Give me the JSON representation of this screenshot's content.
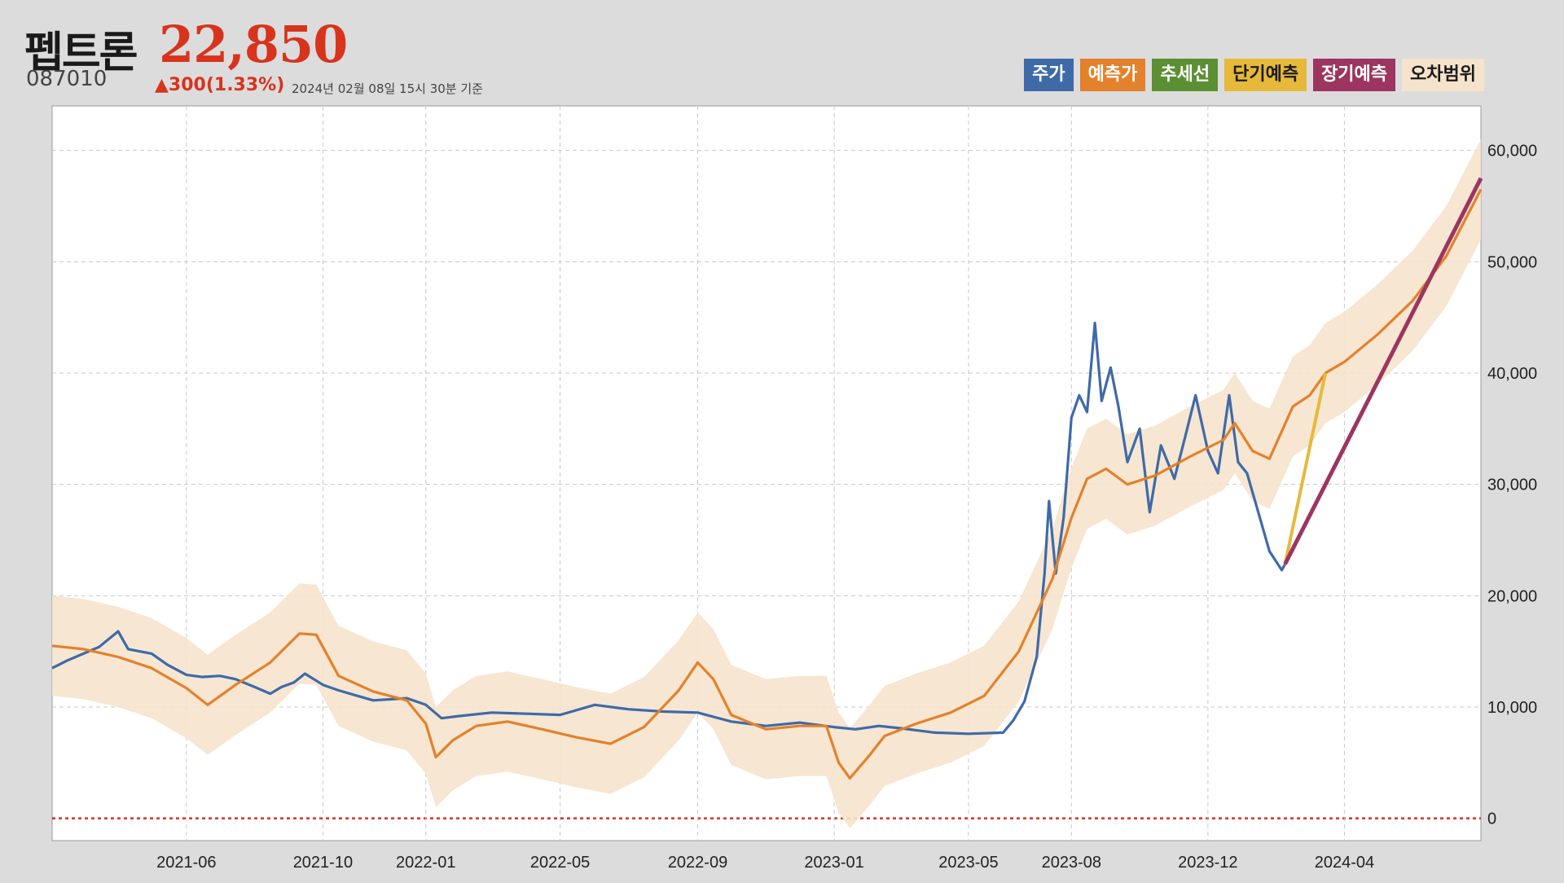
{
  "header": {
    "name": "펩트론",
    "price": "22,850",
    "code": "087010",
    "change": "▲300(1.33%)",
    "timestamp": "2024년 02월 08일 15시 30분 기준"
  },
  "legend": [
    {
      "label": "주가",
      "bg": "#3e6aa8",
      "fg": "#ffffff"
    },
    {
      "label": "예측가",
      "bg": "#e3812c",
      "fg": "#ffffff"
    },
    {
      "label": "추세선",
      "bg": "#5b8f33",
      "fg": "#ffffff"
    },
    {
      "label": "단기예측",
      "bg": "#e6b93a",
      "fg": "#1a1a1a"
    },
    {
      "label": "장기예측",
      "bg": "#9c3560",
      "fg": "#ffffff"
    },
    {
      "label": "오차범위",
      "bg": "#f6e3cc",
      "fg": "#1a1a1a"
    }
  ],
  "chart_data": {
    "type": "line",
    "x_tick_labels": [
      "2021-06",
      "2021-10",
      "2022-01",
      "2022-05",
      "2022-09",
      "2023-01",
      "2023-05",
      "2023-08",
      "2023-12",
      "2024-04"
    ],
    "y_tick_labels": [
      "0",
      "10,000",
      "20,000",
      "30,000",
      "40,000",
      "50,000",
      "60,000"
    ],
    "xlim": [
      "2021-02-01",
      "2024-08-01"
    ],
    "ylim": [
      -2000,
      64000
    ],
    "grid": true,
    "baseline": 0,
    "colors": {
      "price": "#3e6aa8",
      "predicted": "#e3812c",
      "band": "#f6e3cc",
      "short": "#e6b93a",
      "long": "#9c3560",
      "baseline": "#d8331c"
    },
    "series": [
      {
        "name": "주가",
        "key": "price",
        "values": [
          [
            "2021-02-01",
            13500
          ],
          [
            "2021-02-15",
            14200
          ],
          [
            "2021-03-01",
            14800
          ],
          [
            "2021-03-15",
            15400
          ],
          [
            "2021-04-01",
            16800
          ],
          [
            "2021-04-10",
            15200
          ],
          [
            "2021-05-01",
            14800
          ],
          [
            "2021-05-15",
            13800
          ],
          [
            "2021-06-01",
            12900
          ],
          [
            "2021-06-15",
            12700
          ],
          [
            "2021-07-01",
            12800
          ],
          [
            "2021-07-15",
            12500
          ],
          [
            "2021-08-01",
            11800
          ],
          [
            "2021-08-15",
            11200
          ],
          [
            "2021-08-25",
            11800
          ],
          [
            "2021-09-05",
            12200
          ],
          [
            "2021-09-15",
            13000
          ],
          [
            "2021-10-01",
            12000
          ],
          [
            "2021-10-15",
            11500
          ],
          [
            "2021-11-01",
            11000
          ],
          [
            "2021-11-15",
            10600
          ],
          [
            "2021-12-01",
            10700
          ],
          [
            "2021-12-15",
            10800
          ],
          [
            "2022-01-01",
            10200
          ],
          [
            "2022-01-15",
            9000
          ],
          [
            "2022-02-01",
            9200
          ],
          [
            "2022-03-01",
            9500
          ],
          [
            "2022-04-01",
            9400
          ],
          [
            "2022-05-01",
            9300
          ],
          [
            "2022-06-01",
            10200
          ],
          [
            "2022-07-01",
            9800
          ],
          [
            "2022-08-01",
            9600
          ],
          [
            "2022-09-01",
            9500
          ],
          [
            "2022-10-01",
            8700
          ],
          [
            "2022-11-01",
            8300
          ],
          [
            "2022-12-01",
            8600
          ],
          [
            "2023-01-01",
            8200
          ],
          [
            "2023-01-20",
            8000
          ],
          [
            "2023-02-10",
            8300
          ],
          [
            "2023-03-01",
            8100
          ],
          [
            "2023-04-01",
            7700
          ],
          [
            "2023-05-01",
            7600
          ],
          [
            "2023-06-01",
            7700
          ],
          [
            "2023-06-10",
            8800
          ],
          [
            "2023-06-20",
            10500
          ],
          [
            "2023-07-01",
            14500
          ],
          [
            "2023-07-08",
            22000
          ],
          [
            "2023-07-12",
            28500
          ],
          [
            "2023-07-18",
            22000
          ],
          [
            "2023-07-25",
            27000
          ],
          [
            "2023-08-01",
            36000
          ],
          [
            "2023-08-08",
            38000
          ],
          [
            "2023-08-15",
            36500
          ],
          [
            "2023-08-22",
            44500
          ],
          [
            "2023-08-28",
            37500
          ],
          [
            "2023-09-05",
            40500
          ],
          [
            "2023-09-12",
            37000
          ],
          [
            "2023-09-20",
            32000
          ],
          [
            "2023-10-01",
            35000
          ],
          [
            "2023-10-10",
            27500
          ],
          [
            "2023-10-20",
            33500
          ],
          [
            "2023-11-01",
            30500
          ],
          [
            "2023-11-10",
            34000
          ],
          [
            "2023-11-20",
            38000
          ],
          [
            "2023-12-01",
            33000
          ],
          [
            "2023-12-10",
            31000
          ],
          [
            "2023-12-20",
            38000
          ],
          [
            "2023-12-28",
            32000
          ],
          [
            "2024-01-05",
            31000
          ],
          [
            "2024-01-15",
            27500
          ],
          [
            "2024-01-25",
            24000
          ],
          [
            "2024-02-05",
            22300
          ],
          [
            "2024-02-08",
            22850
          ]
        ]
      },
      {
        "name": "예측가",
        "key": "predicted",
        "values": [
          [
            "2021-02-01",
            15500
          ],
          [
            "2021-03-01",
            15200
          ],
          [
            "2021-04-01",
            14500
          ],
          [
            "2021-05-01",
            13500
          ],
          [
            "2021-06-01",
            11700
          ],
          [
            "2021-06-20",
            10200
          ],
          [
            "2021-07-15",
            12000
          ],
          [
            "2021-08-15",
            14000
          ],
          [
            "2021-09-10",
            16600
          ],
          [
            "2021-09-25",
            16500
          ],
          [
            "2021-10-15",
            12800
          ],
          [
            "2021-11-15",
            11400
          ],
          [
            "2021-12-15",
            10600
          ],
          [
            "2022-01-01",
            8500
          ],
          [
            "2022-01-10",
            5500
          ],
          [
            "2022-01-25",
            7000
          ],
          [
            "2022-02-15",
            8300
          ],
          [
            "2022-03-15",
            8700
          ],
          [
            "2022-04-15",
            8000
          ],
          [
            "2022-05-15",
            7300
          ],
          [
            "2022-06-15",
            6700
          ],
          [
            "2022-07-15",
            8200
          ],
          [
            "2022-08-15",
            11500
          ],
          [
            "2022-09-01",
            14000
          ],
          [
            "2022-09-15",
            12500
          ],
          [
            "2022-10-01",
            9300
          ],
          [
            "2022-11-01",
            8000
          ],
          [
            "2022-12-01",
            8300
          ],
          [
            "2022-12-25",
            8300
          ],
          [
            "2023-01-05",
            5000
          ],
          [
            "2023-01-15",
            3600
          ],
          [
            "2023-02-01",
            5600
          ],
          [
            "2023-02-15",
            7400
          ],
          [
            "2023-03-15",
            8500
          ],
          [
            "2023-04-15",
            9500
          ],
          [
            "2023-05-15",
            11000
          ],
          [
            "2023-06-15",
            15000
          ],
          [
            "2023-07-15",
            21500
          ],
          [
            "2023-08-01",
            27000
          ],
          [
            "2023-08-15",
            30500
          ],
          [
            "2023-09-01",
            31400
          ],
          [
            "2023-09-20",
            30000
          ],
          [
            "2023-10-15",
            30800
          ],
          [
            "2023-11-15",
            32500
          ],
          [
            "2023-12-15",
            34000
          ],
          [
            "2023-12-25",
            35500
          ],
          [
            "2024-01-10",
            33000
          ],
          [
            "2024-01-25",
            32300
          ],
          [
            "2024-02-15",
            37000
          ],
          [
            "2024-03-01",
            38000
          ],
          [
            "2024-03-15",
            40000
          ],
          [
            "2024-04-01",
            41000
          ],
          [
            "2024-05-01",
            43500
          ],
          [
            "2024-06-01",
            46500
          ],
          [
            "2024-07-01",
            50500
          ],
          [
            "2024-08-01",
            56500
          ]
        ]
      },
      {
        "name": "단기예측",
        "key": "short",
        "values": [
          [
            "2024-02-08",
            22850
          ],
          [
            "2024-03-15",
            40000
          ]
        ]
      },
      {
        "name": "장기예측",
        "key": "long",
        "values": [
          [
            "2024-02-08",
            22850
          ],
          [
            "2024-08-01",
            57500
          ]
        ]
      }
    ],
    "band_halfwidth": 4500
  }
}
